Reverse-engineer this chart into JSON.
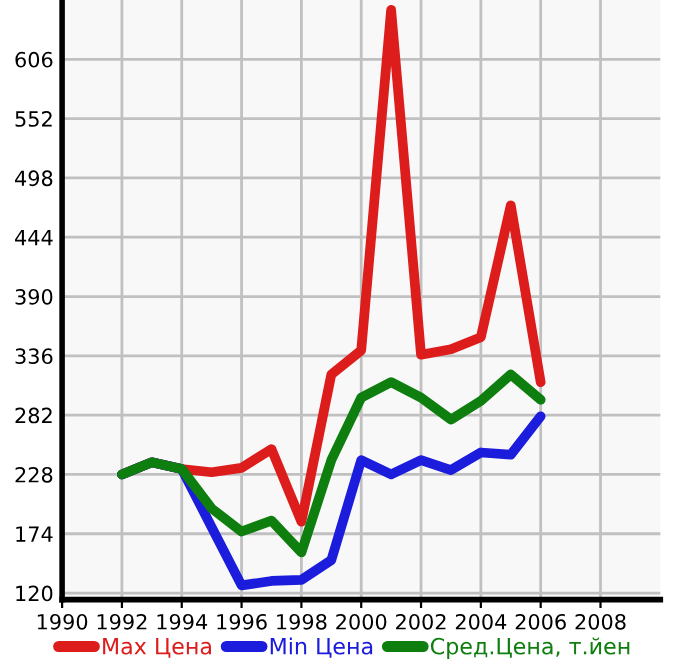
{
  "chart_data": {
    "type": "line",
    "x": [
      1992,
      1993,
      1994,
      1995,
      1996,
      1997,
      1998,
      1999,
      2000,
      2001,
      2002,
      2003,
      2004,
      2005,
      2006
    ],
    "series": [
      {
        "name": "Max Цена",
        "color": "#dd1c1c",
        "values": [
          228,
          239,
          233,
          230,
          234,
          251,
          185,
          319,
          341,
          651,
          337,
          342,
          353,
          473,
          312
        ]
      },
      {
        "name": "Min Цена",
        "color": "#1c1cdd",
        "values": [
          228,
          239,
          233,
          180,
          127,
          131,
          132,
          150,
          241,
          228,
          241,
          232,
          248,
          246,
          281
        ]
      },
      {
        "name": "Сред.Цена, т.йен",
        "color": "#0e7e0e",
        "values": [
          228,
          239,
          233,
          197,
          176,
          186,
          157,
          241,
          298,
          312,
          298,
          278,
          295,
          319,
          296
        ]
      }
    ],
    "xlim": [
      1990,
      2010
    ],
    "xticks": [
      1990,
      1992,
      1994,
      1996,
      1998,
      2000,
      2002,
      2004,
      2006,
      2008
    ],
    "ylim": [
      114,
      660
    ],
    "yticks": [
      120,
      174,
      228,
      282,
      336,
      390,
      444,
      498,
      552,
      606
    ],
    "grid": true,
    "legend": "bottom",
    "marker": "none",
    "line_style": "solid"
  }
}
